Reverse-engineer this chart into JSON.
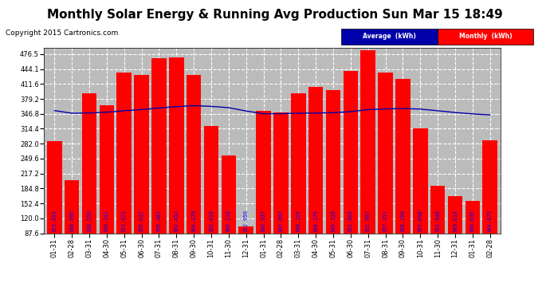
{
  "title": "Monthly Solar Energy & Running Avg Production Sun Mar 15 18:49",
  "copyright": "Copyright 2015 Cartronics.com",
  "legend_avg": "Average  (kWh)",
  "legend_monthly": "Monthly  (kWh)",
  "bar_color": "#ff0000",
  "avg_line_color": "#0000aa",
  "background_color": "#ffffff",
  "grid_color": "#bbbbbb",
  "ylim": [
    87.6,
    490.0
  ],
  "yticks": [
    87.6,
    120.0,
    152.4,
    184.8,
    217.2,
    249.6,
    282.0,
    314.4,
    346.8,
    379.2,
    411.6,
    444.1,
    476.5
  ],
  "dates": [
    "01-31",
    "02-28",
    "03-31",
    "04-30",
    "05-31",
    "06-30",
    "07-31",
    "08-31",
    "09-30",
    "10-31",
    "11-30",
    "12-31",
    "01-31",
    "02-28",
    "03-31",
    "04-30",
    "05-31",
    "06-30",
    "07-31",
    "08-31",
    "09-30",
    "10-31",
    "11-30",
    "12-31",
    "01-31",
    "02-28"
  ],
  "monthly_values": [
    288.0,
    203.0,
    392.0,
    365.0,
    437.0,
    432.0,
    468.0,
    469.0,
    432.0,
    320.0,
    257.0,
    103.0,
    354.0,
    350.0,
    391.0,
    406.0,
    399.0,
    440.0,
    484.0,
    436.0,
    422.0,
    315.0,
    190.0,
    168.0,
    157.0,
    290.0
  ],
  "avg_values": [
    353.814,
    348.095,
    348.55,
    350.341,
    353.421,
    356.032,
    359.301,
    362.452,
    364.479,
    363.019,
    360.11,
    352.95,
    346.937,
    347.097,
    348.155,
    348.375,
    349.328,
    351.405,
    355.907,
    357.351,
    358.25,
    357.056,
    353.448,
    349.614,
    346.635,
    344.475
  ],
  "special_bar_index": 12,
  "title_fontsize": 11,
  "copyright_fontsize": 6.5,
  "tick_fontsize": 6,
  "bar_label_fontsize": 4.8
}
